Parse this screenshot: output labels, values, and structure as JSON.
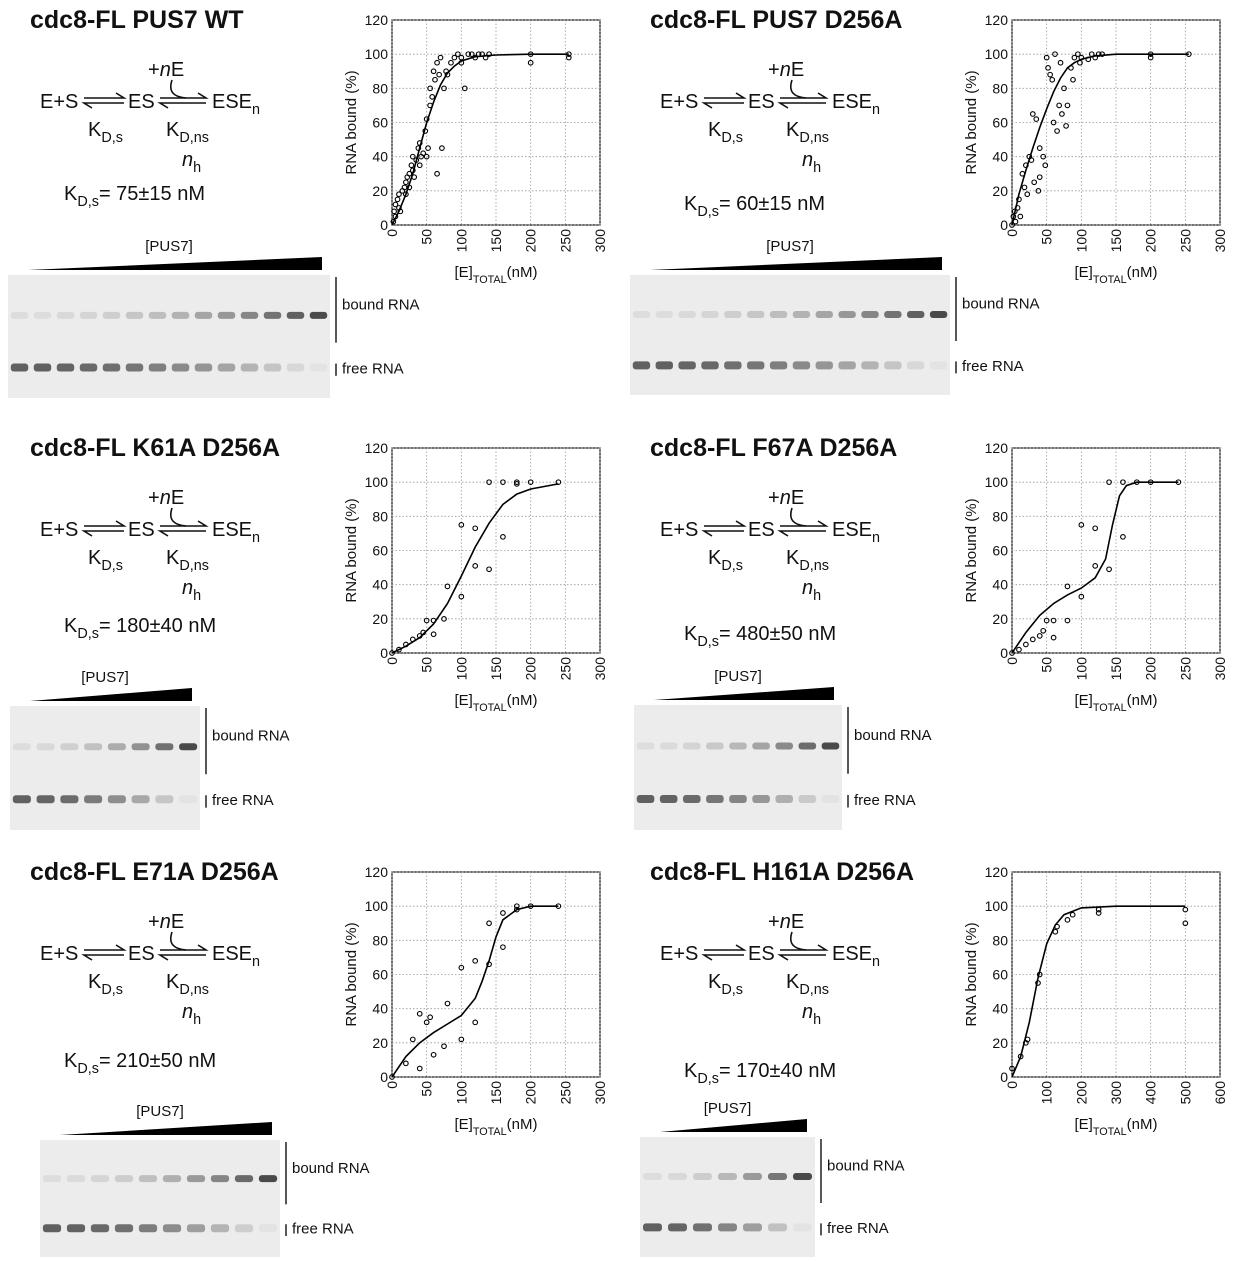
{
  "chart_data": [
    {
      "type": "scatter",
      "title": "cdc8-FL PUS7 WT",
      "scheme": {
        "substrate": "E+S",
        "complex": "ES",
        "addition_plus": "+",
        "addition_n": "n",
        "addition_e": "E",
        "product": "ESE",
        "product_sub": "n",
        "k1": "K",
        "k1_sub": "D,s",
        "k2": "K",
        "k2_sub": "D,ns",
        "hill": "n",
        "hill_sub": "h"
      },
      "kd": {
        "symbol": "K",
        "sub": "D,s",
        "text": "= 75±15  nM"
      },
      "gel": {
        "titrant": "[PUS7]",
        "bound": "bound RNA",
        "free": "free RNA"
      },
      "ylabel": "RNA bound (%)",
      "xlabel": {
        "main": "[E]",
        "sub": "TOTAL",
        "unit": "(nM)"
      },
      "xlim": [
        0,
        300
      ],
      "xticks": [
        0,
        50,
        100,
        150,
        200,
        250,
        300
      ],
      "ylim": [
        0,
        120
      ],
      "yticks": [
        0,
        20,
        40,
        60,
        80,
        100,
        120
      ],
      "grid": true,
      "series": [
        {
          "style": "markers",
          "color": "#000000",
          "x": [
            2,
            3,
            5,
            5,
            8,
            10,
            10,
            12,
            15,
            18,
            20,
            20,
            22,
            25,
            25,
            28,
            30,
            30,
            32,
            35,
            38,
            40,
            40,
            42,
            45,
            48,
            50,
            50,
            52,
            55,
            55,
            58,
            60,
            62,
            65,
            65,
            68,
            70,
            72,
            75,
            78,
            80,
            85,
            90,
            95,
            100,
            100,
            105,
            110,
            115,
            120,
            125,
            130,
            135,
            140,
            200,
            200,
            255,
            255
          ],
          "values": [
            2,
            8,
            5,
            12,
            15,
            10,
            18,
            8,
            20,
            22,
            18,
            25,
            28,
            30,
            22,
            35,
            32,
            40,
            28,
            38,
            45,
            48,
            35,
            40,
            42,
            55,
            40,
            62,
            45,
            70,
            80,
            75,
            90,
            85,
            95,
            30,
            88,
            98,
            45,
            80,
            90,
            88,
            95,
            98,
            100,
            98,
            95,
            80,
            100,
            100,
            98,
            100,
            100,
            98,
            100,
            100,
            95,
            100,
            98
          ]
        },
        {
          "style": "line",
          "color": "#000000",
          "x": [
            0,
            10,
            20,
            30,
            40,
            50,
            60,
            70,
            80,
            90,
            100,
            120,
            150,
            200,
            255
          ],
          "values": [
            0,
            8,
            18,
            30,
            45,
            60,
            72,
            82,
            89,
            93,
            96,
            98.5,
            99.5,
            100,
            100
          ]
        }
      ]
    },
    {
      "type": "scatter",
      "title": "cdc8-FL PUS7 D256A",
      "scheme": {
        "substrate": "E+S",
        "complex": "ES",
        "addition_plus": "+",
        "addition_n": "n",
        "addition_e": "E",
        "product": "ESE",
        "product_sub": "n",
        "k1": "K",
        "k1_sub": "D,s",
        "k2": "K",
        "k2_sub": "D,ns",
        "hill": "n",
        "hill_sub": "h"
      },
      "kd": {
        "symbol": "K",
        "sub": "D,s",
        "text": "= 60±15  nM"
      },
      "gel": {
        "titrant": "[PUS7]",
        "bound": "bound RNA",
        "free": "free RNA"
      },
      "ylabel": "RNA bound (%)",
      "xlabel": {
        "main": "[E]",
        "sub": "TOTAL",
        "unit": "(nM)"
      },
      "xlim": [
        0,
        300
      ],
      "xticks": [
        0,
        50,
        100,
        150,
        200,
        250,
        300
      ],
      "ylim": [
        0,
        120
      ],
      "yticks": [
        0,
        20,
        40,
        60,
        80,
        100,
        120
      ],
      "grid": true,
      "series": [
        {
          "style": "markers",
          "color": "#000000",
          "x": [
            0,
            2,
            4,
            5,
            8,
            10,
            12,
            15,
            18,
            20,
            22,
            25,
            28,
            30,
            32,
            35,
            38,
            40,
            40,
            45,
            48,
            50,
            52,
            55,
            58,
            60,
            62,
            65,
            68,
            70,
            72,
            75,
            78,
            80,
            85,
            88,
            90,
            95,
            98,
            100,
            110,
            115,
            120,
            125,
            130,
            200,
            200,
            255
          ],
          "values": [
            0,
            5,
            8,
            2,
            10,
            15,
            5,
            30,
            22,
            35,
            18,
            40,
            38,
            65,
            25,
            62,
            20,
            45,
            28,
            40,
            35,
            98,
            92,
            88,
            85,
            60,
            100,
            55,
            70,
            95,
            65,
            80,
            58,
            70,
            92,
            85,
            98,
            100,
            95,
            98,
            97,
            100,
            98,
            100,
            100,
            100,
            98,
            100
          ]
        },
        {
          "style": "line",
          "color": "#000000",
          "x": [
            0,
            10,
            20,
            30,
            40,
            50,
            60,
            70,
            80,
            90,
            100,
            120,
            150,
            255
          ],
          "values": [
            0,
            18,
            32,
            45,
            57,
            68,
            78,
            86,
            92,
            95,
            97,
            99,
            100,
            100
          ]
        }
      ]
    },
    {
      "type": "scatter",
      "title": "cdc8-FL K61A D256A",
      "scheme": {
        "substrate": "E+S",
        "complex": "ES",
        "addition_plus": "+",
        "addition_n": "n",
        "addition_e": "E",
        "product": "ESE",
        "product_sub": "n",
        "k1": "K",
        "k1_sub": "D,s",
        "k2": "K",
        "k2_sub": "D,ns",
        "hill": "n",
        "hill_sub": "h"
      },
      "kd": {
        "symbol": "K",
        "sub": "D,s",
        "text": "= 180±40  nM"
      },
      "gel": {
        "titrant": "[PUS7]",
        "bound": "bound RNA",
        "free": "free RNA"
      },
      "ylabel": "RNA bound (%)",
      "xlabel": {
        "main": "[E]",
        "sub": "TOTAL",
        "unit": "(nM)"
      },
      "xlim": [
        0,
        300
      ],
      "xticks": [
        0,
        50,
        100,
        150,
        200,
        250,
        300
      ],
      "ylim": [
        0,
        120
      ],
      "yticks": [
        0,
        20,
        40,
        60,
        80,
        100,
        120
      ],
      "grid": true,
      "series": [
        {
          "style": "markers",
          "color": "#000000",
          "x": [
            0,
            10,
            20,
            30,
            40,
            45,
            50,
            60,
            60,
            75,
            80,
            100,
            100,
            120,
            120,
            140,
            140,
            160,
            160,
            180,
            180,
            200,
            240
          ],
          "values": [
            0,
            2,
            5,
            8,
            10,
            12,
            19,
            11,
            19,
            20,
            39,
            33,
            75,
            51,
            73,
            49,
            100,
            68,
            100,
            100,
            99,
            100,
            100
          ]
        },
        {
          "style": "line",
          "color": "#000000",
          "x": [
            0,
            20,
            40,
            60,
            80,
            100,
            120,
            140,
            160,
            180,
            200,
            240
          ],
          "values": [
            0,
            4,
            9,
            17,
            29,
            45,
            62,
            76,
            87,
            93,
            96,
            99
          ]
        }
      ]
    },
    {
      "type": "scatter",
      "title": "cdc8-FL F67A D256A",
      "scheme": {
        "substrate": "E+S",
        "complex": "ES",
        "addition_plus": "+",
        "addition_n": "n",
        "addition_e": "E",
        "product": "ESE",
        "product_sub": "n",
        "k1": "K",
        "k1_sub": "D,s",
        "k2": "K",
        "k2_sub": "D,ns",
        "hill": "n",
        "hill_sub": "h"
      },
      "kd": {
        "symbol": "K",
        "sub": "D,s",
        "text": "= 480±50  nM"
      },
      "gel": {
        "titrant": "[PUS7]",
        "bound": "bound RNA",
        "free": "free RNA"
      },
      "ylabel": "RNA bound (%)",
      "xlabel": {
        "main": "[E]",
        "sub": "TOTAL",
        "unit": "(nM)"
      },
      "xlim": [
        0,
        300
      ],
      "xticks": [
        0,
        50,
        100,
        150,
        200,
        250,
        300
      ],
      "ylim": [
        0,
        120
      ],
      "yticks": [
        0,
        20,
        40,
        60,
        80,
        100,
        120
      ],
      "grid": true,
      "series": [
        {
          "style": "markers",
          "color": "#000000",
          "x": [
            0,
            10,
            20,
            30,
            40,
            45,
            50,
            60,
            60,
            80,
            80,
            100,
            100,
            120,
            120,
            140,
            140,
            160,
            160,
            180,
            200,
            240
          ],
          "values": [
            0,
            2,
            5,
            8,
            10,
            13,
            19,
            9,
            19,
            19,
            39,
            33,
            75,
            51,
            73,
            49,
            100,
            68,
            100,
            100,
            100,
            100
          ]
        },
        {
          "style": "line",
          "color": "#000000",
          "x": [
            0,
            20,
            40,
            60,
            80,
            100,
            120,
            135,
            145,
            155,
            165,
            180,
            240
          ],
          "values": [
            0,
            12,
            22,
            29,
            34,
            38,
            44,
            55,
            75,
            92,
            98,
            100,
            100
          ]
        }
      ]
    },
    {
      "type": "scatter",
      "title": "cdc8-FL E71A D256A",
      "scheme": {
        "substrate": "E+S",
        "complex": "ES",
        "addition_plus": "+",
        "addition_n": "n",
        "addition_e": "E",
        "product": "ESE",
        "product_sub": "n",
        "k1": "K",
        "k1_sub": "D,s",
        "k2": "K",
        "k2_sub": "D,ns",
        "hill": "n",
        "hill_sub": "h"
      },
      "kd": {
        "symbol": "K",
        "sub": "D,s",
        "text": "= 210±50  nM"
      },
      "gel": {
        "titrant": "[PUS7]",
        "bound": "bound RNA",
        "free": "free RNA"
      },
      "ylabel": "RNA bound (%)",
      "xlabel": {
        "main": "[E]",
        "sub": "TOTAL",
        "unit": "(nM)"
      },
      "xlim": [
        0,
        300
      ],
      "xticks": [
        0,
        50,
        100,
        150,
        200,
        250,
        300
      ],
      "ylim": [
        0,
        120
      ],
      "yticks": [
        0,
        20,
        40,
        60,
        80,
        100,
        120
      ],
      "grid": true,
      "series": [
        {
          "style": "markers",
          "color": "#000000",
          "x": [
            0,
            20,
            30,
            40,
            40,
            50,
            55,
            60,
            75,
            80,
            100,
            100,
            120,
            120,
            140,
            140,
            160,
            160,
            180,
            180,
            200,
            240
          ],
          "values": [
            0,
            8,
            22,
            5,
            37,
            32,
            35,
            13,
            18,
            43,
            22,
            64,
            32,
            68,
            66,
            90,
            76,
            96,
            100,
            98,
            100,
            100
          ]
        },
        {
          "style": "line",
          "color": "#000000",
          "x": [
            0,
            20,
            40,
            60,
            80,
            100,
            120,
            130,
            140,
            150,
            160,
            180,
            200,
            240
          ],
          "values": [
            0,
            12,
            20,
            26,
            31,
            36,
            46,
            56,
            68,
            82,
            92,
            98,
            100,
            100
          ]
        }
      ]
    },
    {
      "type": "scatter",
      "title": "cdc8-FL H161A D256A",
      "scheme": {
        "substrate": "E+S",
        "complex": "ES",
        "addition_plus": "+",
        "addition_n": "n",
        "addition_e": "E",
        "product": "ESE",
        "product_sub": "n",
        "k1": "K",
        "k1_sub": "D,s",
        "k2": "K",
        "k2_sub": "D,ns",
        "hill": "n",
        "hill_sub": "h"
      },
      "kd": {
        "symbol": "K",
        "sub": "D,s",
        "text": "= 170±40  nM"
      },
      "gel": {
        "titrant": "[PUS7]",
        "bound": "bound RNA",
        "free": "free RNA"
      },
      "ylabel": "RNA bound (%)",
      "xlabel": {
        "main": "[E]",
        "sub": "TOTAL",
        "unit": "(nM)"
      },
      "xlim": [
        0,
        600
      ],
      "xticks": [
        0,
        100,
        200,
        300,
        400,
        500,
        600
      ],
      "ylim": [
        0,
        120
      ],
      "yticks": [
        0,
        20,
        40,
        60,
        80,
        100,
        120
      ],
      "grid": true,
      "series": [
        {
          "style": "markers",
          "color": "#000000",
          "x": [
            0,
            25,
            40,
            45,
            75,
            80,
            125,
            130,
            160,
            175,
            250,
            250,
            500,
            500
          ],
          "values": [
            5,
            12,
            20,
            22,
            55,
            60,
            85,
            88,
            92,
            95,
            96,
            98,
            98,
            90
          ]
        },
        {
          "style": "line",
          "color": "#000000",
          "x": [
            0,
            25,
            50,
            75,
            100,
            125,
            150,
            200,
            300,
            500
          ],
          "values": [
            0,
            12,
            32,
            58,
            78,
            89,
            95,
            99,
            100,
            100
          ]
        }
      ]
    }
  ]
}
